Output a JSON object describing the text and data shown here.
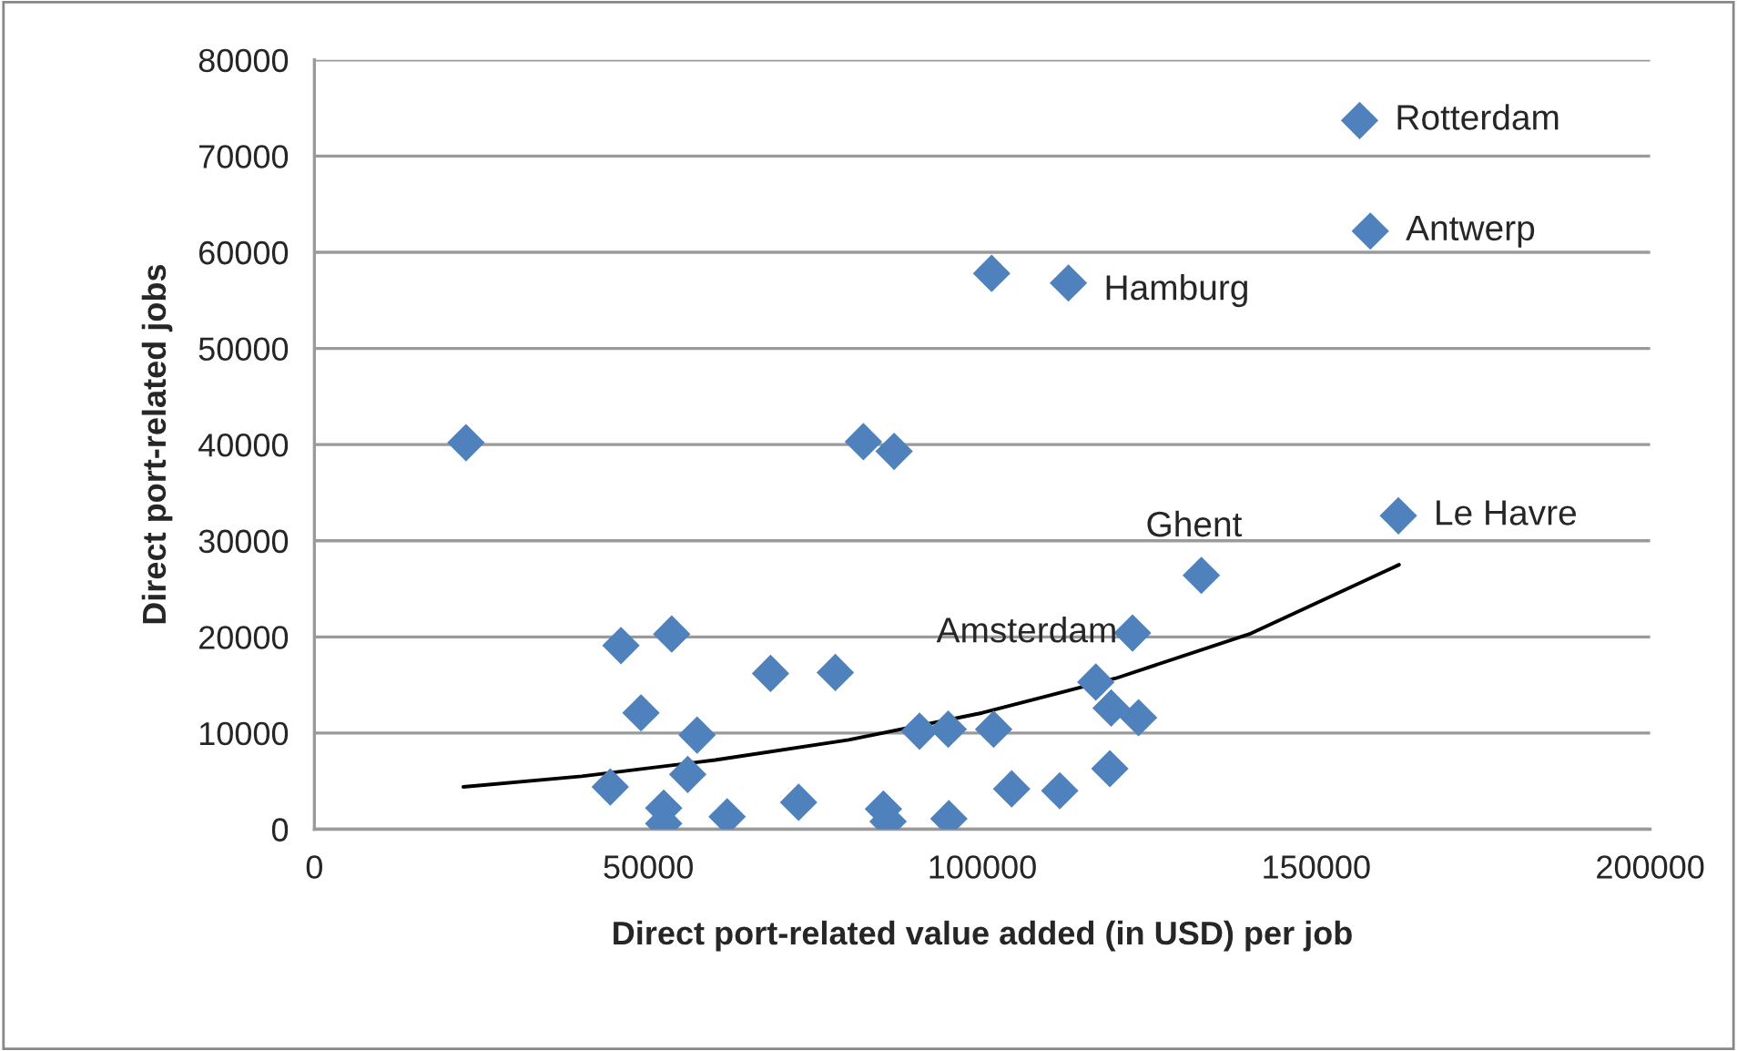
{
  "chart_data": {
    "type": "scatter",
    "xlabel": "Direct port-related value added (in USD) per job",
    "ylabel": "Direct port-related jobs",
    "xlim": [
      0,
      200000
    ],
    "xticks": [
      0,
      50000,
      100000,
      150000,
      200000
    ],
    "ylim": [
      0,
      80000
    ],
    "yticks": [
      0,
      10000,
      20000,
      30000,
      40000,
      50000,
      60000,
      70000,
      80000
    ],
    "grid": "y",
    "legend": false,
    "marker": "diamond",
    "series": [
      {
        "color": "#4f81bd",
        "x": [
          22700,
          82200,
          86800,
          101400,
          112900,
          156500,
          158100,
          162300,
          132800,
          122500,
          117000,
          119300,
          123400,
          119100,
          111600,
          104400,
          101700,
          94900,
          90600,
          95000,
          85200,
          85900,
          78000,
          45900,
          53500,
          48900,
          68300,
          57300,
          55900,
          44300,
          52300,
          52300,
          61800,
          72500
        ],
        "values": [
          40200,
          40300,
          39300,
          57800,
          56800,
          73700,
          62200,
          32600,
          26400,
          20400,
          15300,
          12600,
          11600,
          6300,
          4000,
          4200,
          10400,
          10400,
          10200,
          1100,
          2100,
          800,
          16300,
          19100,
          20300,
          12100,
          16200,
          9800,
          5700,
          4400,
          2200,
          600,
          1300,
          2800
        ]
      },
      {
        "type": "line",
        "color": "#000000",
        "marker": "none",
        "x": [
          22300,
          40000,
          60000,
          80000,
          100000,
          120000,
          140000,
          162400
        ],
        "values": [
          4400,
          5500,
          7200,
          9300,
          12100,
          15700,
          20300,
          27500
        ]
      }
    ],
    "annotations": [
      {
        "text": "Rotterdam",
        "x": 156500,
        "y": 73700
      },
      {
        "text": "Antwerp",
        "x": 158100,
        "y": 62200
      },
      {
        "text": "Hamburg",
        "x": 112900,
        "y": 56800
      },
      {
        "text": "Ghent",
        "x": 132800,
        "y": 26400
      },
      {
        "text": "Le Havre",
        "x": 162300,
        "y": 32600
      },
      {
        "text": "Amsterdam",
        "x": 122500,
        "y": 20400
      }
    ]
  }
}
